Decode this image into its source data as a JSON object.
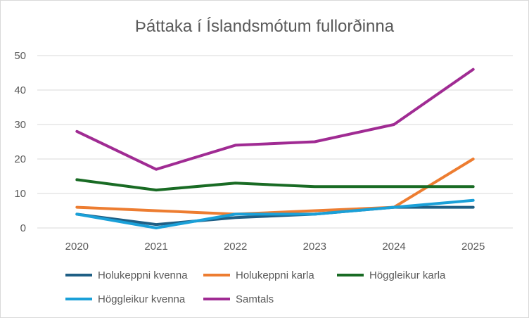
{
  "chart_data": {
    "type": "line",
    "title": "Þáttaka í Íslandsmótum fullorðinna",
    "xlabel": "",
    "ylabel": "",
    "categories": [
      "2020",
      "2021",
      "2022",
      "2023",
      "2024",
      "2025"
    ],
    "ylim": [
      0,
      50
    ],
    "yticks": [
      "0",
      "10",
      "20",
      "30",
      "40",
      "50"
    ],
    "grid": true,
    "legend_position": "bottom",
    "series": [
      {
        "name": "Holukeppni kvenna",
        "color": "#1f5f85",
        "values": [
          4,
          1,
          3,
          4,
          6,
          6
        ]
      },
      {
        "name": "Holukeppni karla",
        "color": "#ed7d31",
        "values": [
          6,
          5,
          4,
          5,
          6,
          20
        ]
      },
      {
        "name": "Höggleikur karla",
        "color": "#196b24",
        "values": [
          14,
          11,
          13,
          12,
          12,
          12
        ]
      },
      {
        "name": "Höggleikur kvenna",
        "color": "#1aa0d8",
        "values": [
          4,
          0,
          4,
          4,
          6,
          8
        ]
      },
      {
        "name": "Samtals",
        "color": "#a02b93",
        "values": [
          28,
          17,
          24,
          25,
          30,
          46
        ]
      }
    ]
  }
}
